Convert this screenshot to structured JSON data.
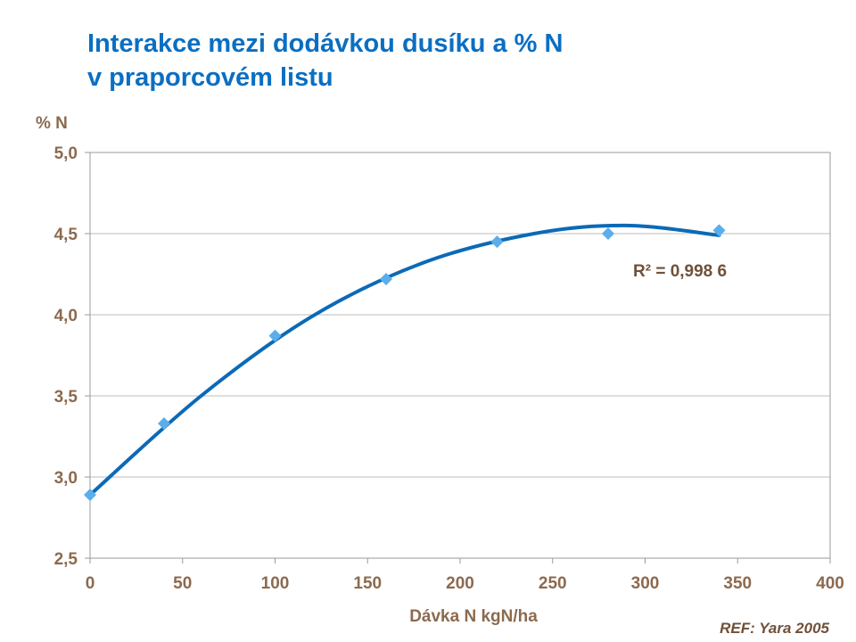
{
  "title_lines": [
    "Interakce mezi dodávkou dusíku a % N",
    "v praporcovém listu"
  ],
  "reference": "REF: Yara 2005",
  "colors": {
    "title": "#0a6fc2",
    "trendline": "#0b6ab7",
    "points": "#5aaeea",
    "axis_text": "#8c6a4e",
    "gridline": "#bdbdbd"
  },
  "chart_data": {
    "type": "scatter",
    "title": "Interakce mezi dodávkou dusíku a % N v praporcovém listu",
    "xlabel": "Dávka N kgN/ha",
    "ylabel": "% N",
    "xlim": [
      0,
      400
    ],
    "ylim": [
      2.5,
      5.0
    ],
    "x_ticks": [
      "0",
      "50",
      "100",
      "150",
      "200",
      "250",
      "300",
      "350",
      "400"
    ],
    "y_ticks": [
      "2,5",
      "3,0",
      "3,5",
      "4,0",
      "4,5",
      "5,0"
    ],
    "grid": "horizontal",
    "series": [
      {
        "marker": "diamond",
        "x": [
          0,
          40,
          100,
          160,
          220,
          280,
          340
        ],
        "y": [
          2.89,
          3.33,
          3.87,
          4.22,
          4.45,
          4.5,
          4.52
        ]
      }
    ],
    "trendline": {
      "type": "polynomial-2",
      "r2_label": "R² = 0,998 6",
      "curve_x": [
        0,
        60,
        120,
        180,
        240,
        290,
        340
      ],
      "curve_y": [
        2.89,
        3.5,
        3.99,
        4.32,
        4.5,
        4.55,
        4.49
      ]
    }
  }
}
